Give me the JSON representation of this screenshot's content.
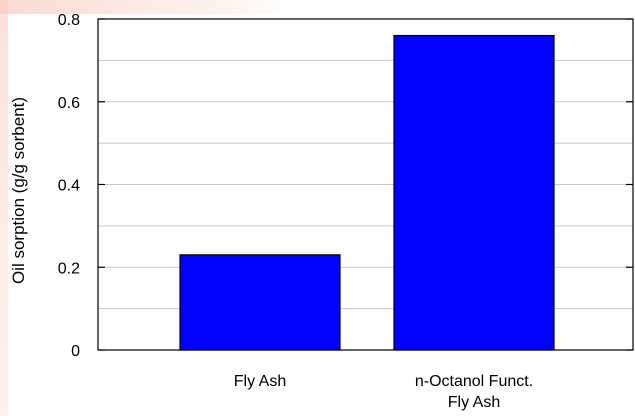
{
  "chart_data": {
    "type": "bar",
    "categories": [
      [
        "Fly Ash"
      ],
      [
        "n-Octanol Funct.",
        "Fly Ash"
      ]
    ],
    "values": [
      0.23,
      0.76
    ],
    "title": "",
    "xlabel": "",
    "ylabel": "Oil sorption (g/g sorbent)",
    "ylim": [
      0,
      0.8
    ],
    "yticks": [
      "0",
      "0.2",
      "0.4",
      "0.6",
      "0.8"
    ],
    "ytick_values": [
      0,
      0.2,
      0.4,
      0.6,
      0.8
    ],
    "minor_gridlines": [
      0.1,
      0.3,
      0.5,
      0.7
    ],
    "grid": true,
    "bar_color": "#0000ff",
    "bar_edge_color": "#000000",
    "grid_color": "#c8c8c8"
  }
}
